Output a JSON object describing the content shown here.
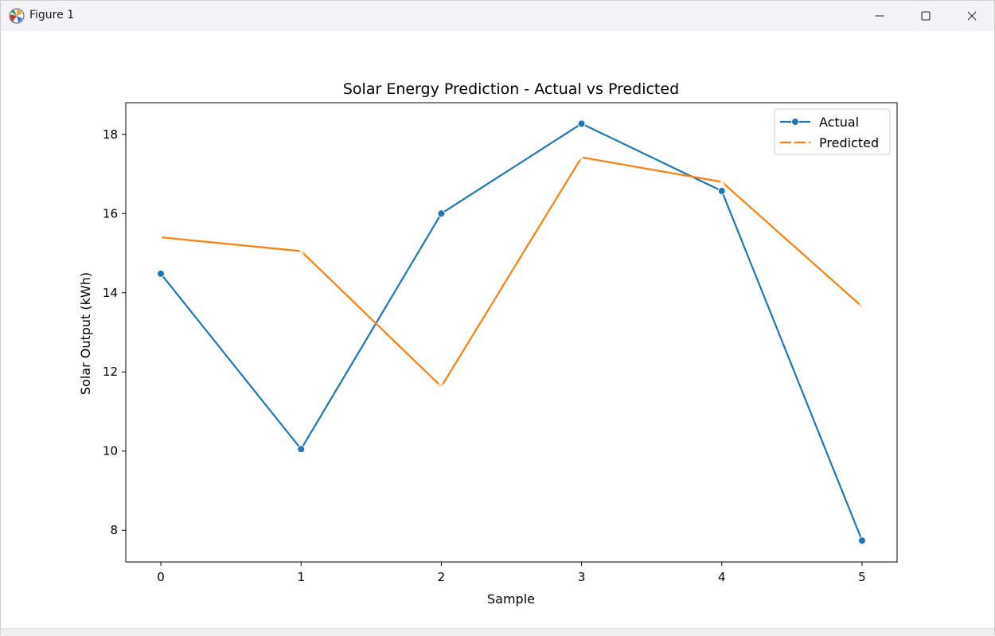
{
  "window": {
    "title": "Figure 1",
    "icons": {
      "app": "matplotlib-icon",
      "minimize": "minimize-icon",
      "maximize": "maximize-icon",
      "close": "close-icon"
    }
  },
  "chart_data": {
    "type": "line",
    "title": "Solar Energy Prediction - Actual vs Predicted",
    "xlabel": "Sample",
    "ylabel": "Solar Output (kWh)",
    "x": [
      0,
      1,
      2,
      3,
      4,
      5
    ],
    "xlim": [
      -0.25,
      5.25
    ],
    "ylim": [
      7.2,
      18.8
    ],
    "xticks": [
      0,
      1,
      2,
      3,
      4,
      5
    ],
    "yticks": [
      8,
      10,
      12,
      14,
      16,
      18
    ],
    "grid": false,
    "legend": "top-right",
    "series": [
      {
        "name": "Actual",
        "values": [
          14.48,
          10.05,
          16.0,
          18.27,
          16.57,
          7.74
        ],
        "color": "#1f77b4",
        "marker": "circle",
        "style": "solid"
      },
      {
        "name": "Predicted",
        "values": [
          15.4,
          15.05,
          11.63,
          17.42,
          16.8,
          13.65
        ],
        "color": "#ff7f0e",
        "marker": "x",
        "style": "dashed"
      }
    ]
  }
}
